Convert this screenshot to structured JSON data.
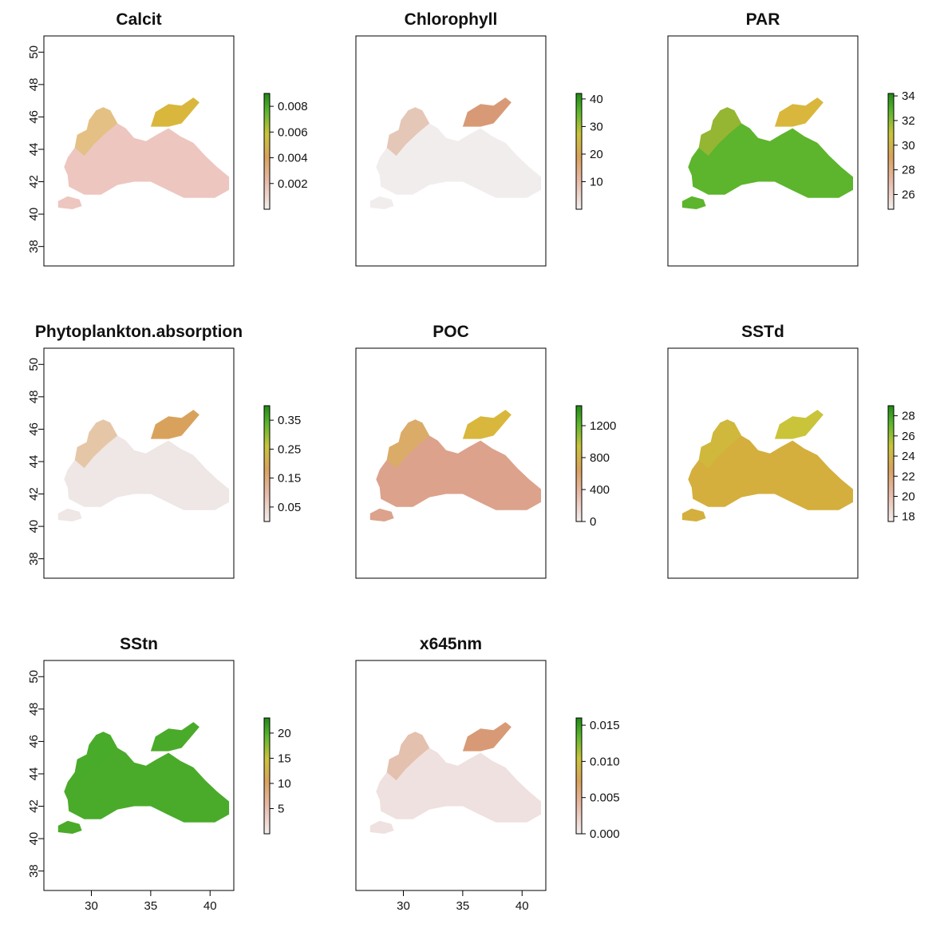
{
  "chart_data": [
    {
      "type": "heatmap",
      "title": "Calcit",
      "y_axis_ticks": [
        "38",
        "40",
        "42",
        "44",
        "46",
        "48",
        "50"
      ],
      "x_axis_ticks": [],
      "ylim": [
        36.8,
        51.0
      ],
      "legend_ticks": [
        "0.002",
        "0.004",
        "0.006",
        "0.008"
      ],
      "legend_range": [
        0.0,
        0.009
      ],
      "colors": {
        "land_high": "#f0ecec",
        "sea_dominant": "#edc6c0",
        "accent": "#d9b73c"
      }
    },
    {
      "type": "heatmap",
      "title": "Chlorophyll",
      "y_axis_ticks": [],
      "x_axis_ticks": [],
      "legend_ticks": [
        "10",
        "20",
        "30",
        "40"
      ],
      "legend_range": [
        0,
        42
      ],
      "colors": {
        "sea_dominant": "#f1eded",
        "accent": "#d89a76"
      }
    },
    {
      "type": "heatmap",
      "title": "PAR",
      "y_axis_ticks": [],
      "x_axis_ticks": [],
      "legend_ticks": [
        "26",
        "28",
        "30",
        "32",
        "34"
      ],
      "legend_range": [
        24.8,
        34.2
      ],
      "colors": {
        "sea_dominant": "#5cb52c",
        "accent": "#d9b73c"
      }
    },
    {
      "type": "heatmap",
      "title": "Phytoplankton.absorption",
      "y_axis_ticks": [
        "38",
        "40",
        "42",
        "44",
        "46",
        "48",
        "50"
      ],
      "x_axis_ticks": [],
      "legend_ticks": [
        "0.05",
        "0.15",
        "0.25",
        "0.35"
      ],
      "legend_range": [
        0.0,
        0.4
      ],
      "colors": {
        "sea_dominant": "#efe6e6",
        "accent": "#d9a25c"
      }
    },
    {
      "type": "heatmap",
      "title": "POC",
      "y_axis_ticks": [],
      "x_axis_ticks": [],
      "legend_ticks": [
        "0",
        "400",
        "800",
        "1200"
      ],
      "legend_range": [
        0,
        1450
      ],
      "colors": {
        "sea_dominant": "#dca28c",
        "accent": "#d9b73c"
      }
    },
    {
      "type": "heatmap",
      "title": "SSTd",
      "y_axis_ticks": [],
      "x_axis_ticks": [],
      "legend_ticks": [
        "18",
        "20",
        "22",
        "24",
        "26",
        "28"
      ],
      "legend_range": [
        17.5,
        29.0
      ],
      "colors": {
        "sea_dominant": "#d4af3d",
        "accent": "#c9c43a"
      }
    },
    {
      "type": "heatmap",
      "title": "SStn",
      "y_axis_ticks": [
        "38",
        "40",
        "42",
        "44",
        "46",
        "48",
        "50"
      ],
      "x_axis_ticks": [
        "30",
        "35",
        "40"
      ],
      "xlim": [
        26.0,
        42.0
      ],
      "legend_ticks": [
        "5",
        "15",
        "20"
      ],
      "legend_ticks_full": [
        "5",
        "10",
        "15",
        "20"
      ],
      "legend_range": [
        0,
        23
      ],
      "colors": {
        "sea_dominant": "#4aab2a",
        "accent": "#4aab2a"
      }
    },
    {
      "type": "heatmap",
      "title": "x645nm",
      "y_axis_ticks": [],
      "x_axis_ticks": [
        "30",
        "35",
        "40"
      ],
      "legend_ticks": [
        "0.000",
        "0.005",
        "0.010",
        "0.015"
      ],
      "legend_range": [
        0.0,
        0.016
      ],
      "colors": {
        "sea_dominant": "#efe1df",
        "accent": "#d89a76"
      }
    }
  ]
}
